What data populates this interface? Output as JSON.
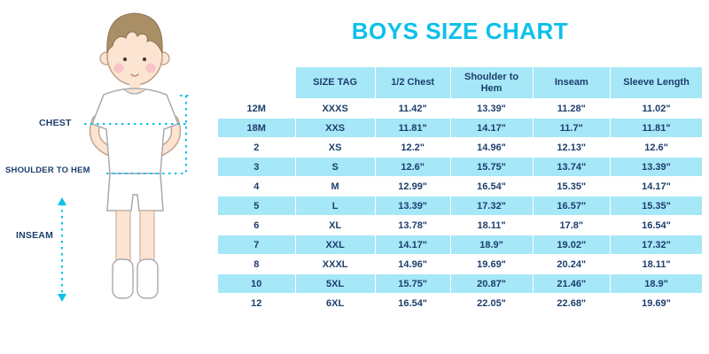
{
  "labels": {
    "chest": "CHEST",
    "shoulder_to_hem": "SHOULDER TO HEM",
    "inseam": "INSEAM"
  },
  "colors": {
    "accent_cyan": "#0cc0ea",
    "row_cyan": "#a6e7f8",
    "text_navy": "#1d3e6d"
  },
  "chart_data": {
    "type": "table",
    "title": "BOYS SIZE CHART",
    "columns": [
      "",
      "SIZE TAG",
      "1/2 Chest",
      "Shoulder to Hem",
      "Inseam",
      "Sleeve Length"
    ],
    "rows": [
      [
        "12M",
        "XXXS",
        "11.42\"",
        "13.39\"",
        "11.28\"",
        "11.02\""
      ],
      [
        "18M",
        "XXS",
        "11.81\"",
        "14.17\"",
        "11.7\"",
        "11.81\""
      ],
      [
        "2",
        "XS",
        "12.2\"",
        "14.96\"",
        "12.13\"",
        "12.6\""
      ],
      [
        "3",
        "S",
        "12.6\"",
        "15.75\"",
        "13.74\"",
        "13.39\""
      ],
      [
        "4",
        "M",
        "12.99\"",
        "16.54\"",
        "15.35\"",
        "14.17\""
      ],
      [
        "5",
        "L",
        "13.39\"",
        "17.32\"",
        "16.57\"",
        "15.35\""
      ],
      [
        "6",
        "XL",
        "13.78\"",
        "18.11\"",
        "17.8\"",
        "16.54\""
      ],
      [
        "7",
        "XXL",
        "14.17\"",
        "18.9\"",
        "19.02\"",
        "17.32\""
      ],
      [
        "8",
        "XXXL",
        "14.96\"",
        "19.69\"",
        "20.24\"",
        "18.11\""
      ],
      [
        "10",
        "5XL",
        "15.75\"",
        "20.87\"",
        "21.46\"",
        "18.9\""
      ],
      [
        "12",
        "6XL",
        "16.54\"",
        "22.05\"",
        "22.68\"",
        "19.69\""
      ]
    ]
  }
}
